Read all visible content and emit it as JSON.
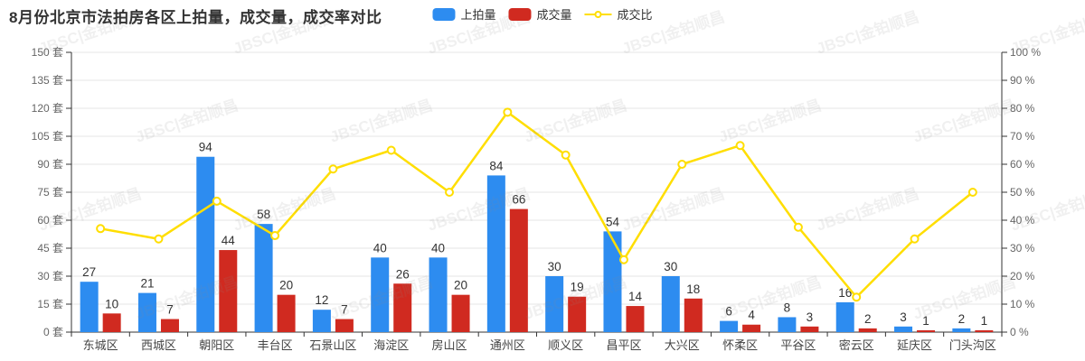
{
  "title": "8月份北京市法拍房各区上拍量，成交量，成交率对比",
  "watermark": "JBSC|金铂顺昌",
  "legend": [
    {
      "label": "上拍量",
      "type": "bar",
      "color": "#2D8CF0"
    },
    {
      "label": "成交量",
      "type": "bar",
      "color": "#D02A20"
    },
    {
      "label": "成交比",
      "type": "line",
      "color": "#FFDE00"
    }
  ],
  "colors": {
    "blue": "#2D8CF0",
    "red": "#D02A20",
    "yellow": "#FFDE00",
    "grid": "#E6E6E6",
    "axis": "#333333",
    "tick_label": "#666666",
    "x_label": "#444444",
    "value_label": "#333333"
  },
  "chart_data": {
    "type": "bar+line",
    "title": "8月份北京市法拍房各区上拍量，成交量，成交率对比",
    "categories": [
      "东城区",
      "西城区",
      "朝阳区",
      "丰台区",
      "石景山区",
      "海淀区",
      "房山区",
      "通州区",
      "顺义区",
      "昌平区",
      "大兴区",
      "怀柔区",
      "平谷区",
      "密云区",
      "延庆区",
      "门头沟区"
    ],
    "series": [
      {
        "name": "上拍量",
        "type": "bar",
        "axis": "left",
        "color": "#2D8CF0",
        "values": [
          27,
          21,
          94,
          58,
          12,
          40,
          40,
          84,
          30,
          54,
          30,
          6,
          8,
          16,
          3,
          2
        ]
      },
      {
        "name": "成交量",
        "type": "bar",
        "axis": "left",
        "color": "#D02A20",
        "values": [
          10,
          7,
          44,
          20,
          7,
          26,
          20,
          66,
          19,
          14,
          18,
          4,
          3,
          2,
          1,
          1
        ]
      },
      {
        "name": "成交比",
        "type": "line",
        "axis": "right",
        "color": "#FFDE00",
        "values": [
          37.0,
          33.3,
          46.8,
          34.5,
          58.3,
          65.0,
          50.0,
          78.6,
          63.3,
          25.9,
          60.0,
          66.7,
          37.5,
          12.5,
          33.3,
          50.0
        ]
      }
    ],
    "left_axis": {
      "min": 0,
      "max": 150,
      "step": 15,
      "unit": "套",
      "tick_labels": [
        "0 套",
        "15 套",
        "30 套",
        "45 套",
        "60 套",
        "75 套",
        "90 套",
        "105 套",
        "120 套",
        "135 套",
        "150 套"
      ]
    },
    "right_axis": {
      "min": 0,
      "max": 100,
      "step": 10,
      "unit": "%",
      "tick_labels": [
        "0 %",
        "10 %",
        "20 %",
        "30 %",
        "40 %",
        "50 %",
        "60 %",
        "70 %",
        "80 %",
        "90 %",
        "100 %"
      ]
    },
    "grid": true,
    "legend_position": "top",
    "value_labels_shown": true
  }
}
